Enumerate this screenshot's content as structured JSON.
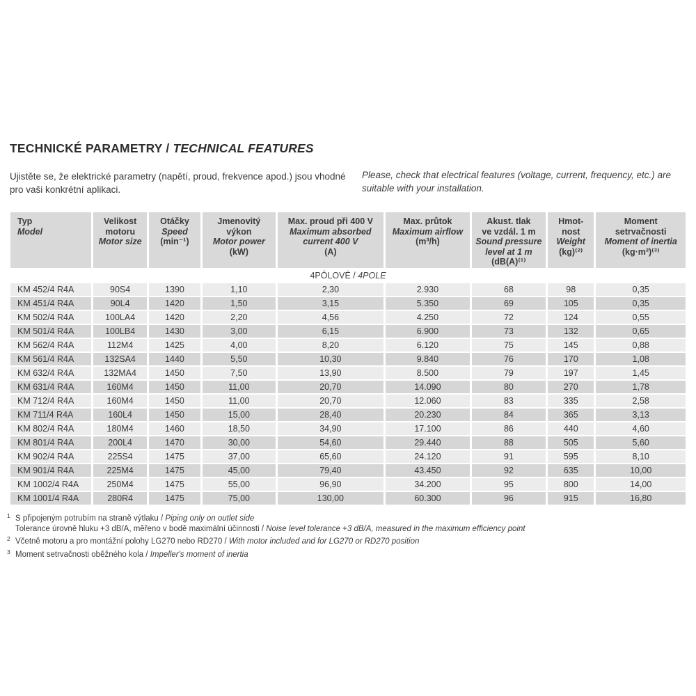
{
  "page": {
    "title_cz": "TECHNICKÉ PARAMETRY",
    "title_sep": " / ",
    "title_en": "TECHNICAL FEATURES",
    "intro_cz": "Ujistěte se, že elektrické parametry (napětí, proud, frekvence apod.) jsou vhodné pro vaši konkrétní aplikaci.",
    "intro_en": "Please, check that electrical features (voltage, current, frequency, etc.) are suitable with your installation."
  },
  "colors": {
    "header_bg": "#d9d9d9",
    "row_light": "#ececec",
    "row_dark": "#d6d6d6",
    "text": "#3a3a3a"
  },
  "table": {
    "columns": [
      {
        "id": "model",
        "lines": [
          {
            "t": "Typ",
            "i": false
          },
          {
            "t": "Model",
            "i": true
          }
        ]
      },
      {
        "id": "motor-size",
        "lines": [
          {
            "t": "Velikost",
            "i": false
          },
          {
            "t": "motoru",
            "i": false
          },
          {
            "t": "Motor size",
            "i": true
          }
        ]
      },
      {
        "id": "speed",
        "lines": [
          {
            "t": "Otáčky",
            "i": false
          },
          {
            "t": "Speed",
            "i": true
          },
          {
            "t": "(min⁻¹)",
            "i": false
          }
        ]
      },
      {
        "id": "power",
        "lines": [
          {
            "t": "Jmenovitý",
            "i": false
          },
          {
            "t": "výkon",
            "i": false
          },
          {
            "t": "Motor power",
            "i": true
          },
          {
            "t": "(kW)",
            "i": false
          }
        ]
      },
      {
        "id": "current",
        "lines": [
          {
            "t": "Max. proud při 400 V",
            "i": false
          },
          {
            "t": "Maximum absorbed",
            "i": true
          },
          {
            "t": "current 400 V",
            "i": true
          },
          {
            "t": "(A)",
            "i": false
          }
        ]
      },
      {
        "id": "airflow",
        "lines": [
          {
            "t": "Max. průtok",
            "i": false
          },
          {
            "t": "Maximum airflow",
            "i": true
          },
          {
            "t": "(m³/h)",
            "i": false
          }
        ]
      },
      {
        "id": "sound",
        "lines": [
          {
            "t": "Akust. tlak",
            "i": false
          },
          {
            "t": "ve vzdál. 1 m",
            "i": false
          },
          {
            "t": "Sound pressure",
            "i": true
          },
          {
            "t": "level at 1 m",
            "i": true
          },
          {
            "t": "(dB(A)⁽¹⁾",
            "i": false
          }
        ]
      },
      {
        "id": "weight",
        "lines": [
          {
            "t": "Hmot-",
            "i": false
          },
          {
            "t": "nost",
            "i": false
          },
          {
            "t": "Weight",
            "i": true
          },
          {
            "t": "(kg)⁽²⁾",
            "i": false
          }
        ]
      },
      {
        "id": "inertia",
        "lines": [
          {
            "t": "Moment",
            "i": false
          },
          {
            "t": "setrvačnosti",
            "i": false
          },
          {
            "t": "Moment of inertia",
            "i": true
          },
          {
            "t": "(kg·m²)⁽³⁾",
            "i": false
          }
        ]
      }
    ],
    "section_cz": "4PÓLOVÉ",
    "section_sep": " / ",
    "section_en": "4POLE",
    "rows": [
      [
        "KM 452/4 R4A",
        "90S4",
        "1390",
        "1,10",
        "2,30",
        "2.930",
        "68",
        "98",
        "0,35"
      ],
      [
        "KM 451/4 R4A",
        "90L4",
        "1420",
        "1,50",
        "3,15",
        "5.350",
        "69",
        "105",
        "0,35"
      ],
      [
        "KM 502/4 R4A",
        "100LA4",
        "1420",
        "2,20",
        "4,56",
        "4.250",
        "72",
        "124",
        "0,55"
      ],
      [
        "KM 501/4 R4A",
        "100LB4",
        "1430",
        "3,00",
        "6,15",
        "6.900",
        "73",
        "132",
        "0,65"
      ],
      [
        "KM 562/4 R4A",
        "112M4",
        "1425",
        "4,00",
        "8,20",
        "6.120",
        "75",
        "145",
        "0,88"
      ],
      [
        "KM 561/4 R4A",
        "132SA4",
        "1440",
        "5,50",
        "10,30",
        "9.840",
        "76",
        "170",
        "1,08"
      ],
      [
        "KM 632/4 R4A",
        "132MA4",
        "1450",
        "7,50",
        "13,90",
        "8.500",
        "79",
        "197",
        "1,45"
      ],
      [
        "KM 631/4 R4A",
        "160M4",
        "1450",
        "11,00",
        "20,70",
        "14.090",
        "80",
        "270",
        "1,78"
      ],
      [
        "KM 712/4 R4A",
        "160M4",
        "1450",
        "11,00",
        "20,70",
        "12.060",
        "83",
        "335",
        "2,58"
      ],
      [
        "KM 711/4 R4A",
        "160L4",
        "1450",
        "15,00",
        "28,40",
        "20.230",
        "84",
        "365",
        "3,13"
      ],
      [
        "KM 802/4 R4A",
        "180M4",
        "1460",
        "18,50",
        "34,90",
        "17.100",
        "86",
        "440",
        "4,60"
      ],
      [
        "KM 801/4 R4A",
        "200L4",
        "1470",
        "30,00",
        "54,60",
        "29.440",
        "88",
        "505",
        "5,60"
      ],
      [
        "KM 902/4 R4A",
        "225S4",
        "1475",
        "37,00",
        "65,60",
        "24.120",
        "91",
        "595",
        "8,10"
      ],
      [
        "KM 901/4 R4A",
        "225M4",
        "1475",
        "45,00",
        "79,40",
        "43.450",
        "92",
        "635",
        "10,00"
      ],
      [
        "KM 1002/4 R4A",
        "250M4",
        "1475",
        "55,00",
        "96,90",
        "34.200",
        "95",
        "800",
        "14,00"
      ],
      [
        "KM 1001/4 R4A",
        "280R4",
        "1475",
        "75,00",
        "130,00",
        "60.300",
        "96",
        "915",
        "16,80"
      ]
    ]
  },
  "footnotes": [
    {
      "marker": "1",
      "cz": "S připojeným potrubím na straně výtlaku",
      "en": "Piping only on outlet side"
    },
    {
      "marker": "",
      "cz": "Tolerance úrovně hluku +3 dB/A, měřeno v bodě maximální účinnosti",
      "en": "Noise level tolerance +3 dB/A, measured in the maximum efficiency point"
    },
    {
      "marker": "2",
      "cz": "Včetně motoru a pro montážní polohy LG270 nebo RD270",
      "en": "With motor included and for LG270 or RD270 position"
    },
    {
      "marker": "3",
      "cz": "Moment setrvačnosti oběžného kola",
      "en": "Impeller's moment of inertia"
    }
  ]
}
